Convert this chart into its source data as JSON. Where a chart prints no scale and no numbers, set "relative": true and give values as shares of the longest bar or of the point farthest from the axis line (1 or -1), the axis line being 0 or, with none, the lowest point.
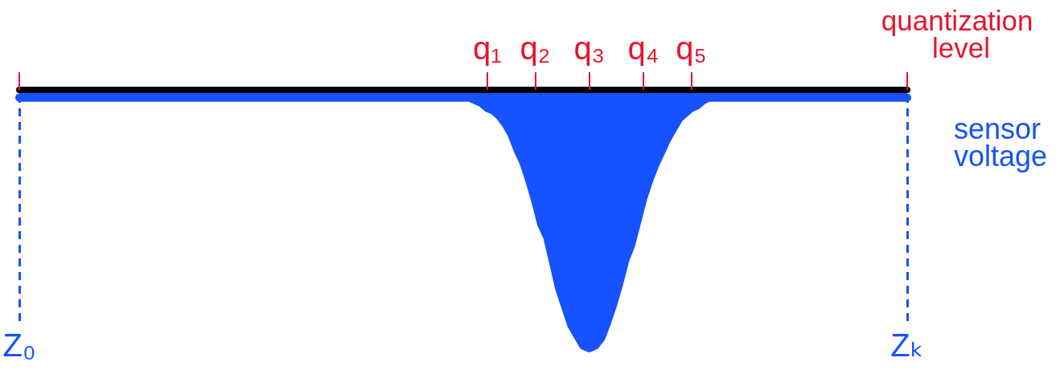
{
  "chart_data": {
    "type": "area",
    "relative": true,
    "xlabel": "quantization level",
    "categories": [
      "Z₀",
      null,
      null,
      null,
      null,
      null,
      null,
      null,
      null,
      null,
      null,
      null,
      null,
      null,
      null,
      null,
      null,
      null,
      null,
      null,
      null,
      null,
      null,
      null,
      null,
      null,
      null,
      null,
      null,
      null,
      null,
      null,
      null,
      null,
      null,
      null,
      null,
      null,
      null,
      null,
      null,
      null,
      null,
      null,
      null,
      null,
      null,
      null,
      null,
      null,
      null,
      null,
      null,
      null,
      null,
      null,
      null,
      null,
      null,
      null,
      null,
      null,
      null,
      null,
      null,
      null,
      null,
      null,
      null,
      null,
      null,
      null,
      null,
      null,
      null,
      null,
      null,
      null,
      "q₁",
      null,
      null,
      null,
      null,
      null,
      null,
      null,
      "q₂",
      null,
      null,
      null,
      null,
      null,
      null,
      null,
      null,
      "q₃",
      null,
      null,
      null,
      null,
      null,
      null,
      null,
      null,
      "q₄",
      null,
      null,
      null,
      null,
      null,
      null,
      null,
      "q₅",
      null,
      null,
      null,
      null,
      null,
      null,
      null,
      null,
      null,
      null,
      null,
      null,
      null,
      null,
      null,
      null,
      null,
      null,
      null,
      null,
      null,
      null,
      null,
      null,
      null,
      null,
      null,
      null,
      null,
      null,
      null,
      null,
      null,
      null,
      null,
      "Zₖ"
    ],
    "series": [
      {
        "name": "sensor voltage",
        "color": "#1652fe",
        "values": [
          -0.03,
          -0.03,
          -0.03,
          -0.03,
          -0.03,
          -0.03,
          -0.03,
          -0.03,
          -0.03,
          -0.03,
          -0.03,
          -0.03,
          -0.03,
          -0.03,
          -0.03,
          -0.03,
          -0.03,
          -0.03,
          -0.03,
          -0.03,
          -0.03,
          -0.03,
          -0.03,
          -0.03,
          -0.03,
          -0.03,
          -0.03,
          -0.03,
          -0.03,
          -0.03,
          -0.03,
          -0.03,
          -0.03,
          -0.03,
          -0.03,
          -0.03,
          -0.03,
          -0.03,
          -0.03,
          -0.03,
          -0.03,
          -0.03,
          -0.03,
          -0.03,
          -0.03,
          -0.03,
          -0.03,
          -0.03,
          -0.03,
          -0.03,
          -0.03,
          -0.03,
          -0.03,
          -0.03,
          -0.03,
          -0.03,
          -0.03,
          -0.03,
          -0.03,
          -0.03,
          -0.03,
          -0.03,
          -0.03,
          -0.03,
          -0.03,
          -0.03,
          -0.03,
          -0.03,
          -0.03,
          -0.03,
          -0.03,
          -0.03,
          -0.03,
          -0.03,
          -0.03,
          -0.03,
          -0.04,
          -0.05,
          -0.07,
          -0.08,
          -0.1,
          -0.13,
          -0.17,
          -0.23,
          -0.28,
          -0.35,
          -0.43,
          -0.52,
          -0.57,
          -0.67,
          -0.77,
          -0.84,
          -0.91,
          -0.95,
          -0.99,
          -1,
          -0.99,
          -0.96,
          -0.9,
          -0.83,
          -0.75,
          -0.66,
          -0.6,
          -0.51,
          -0.42,
          -0.35,
          -0.29,
          -0.24,
          -0.19,
          -0.15,
          -0.11,
          -0.09,
          -0.07,
          -0.06,
          -0.04,
          -0.03,
          -0.03,
          -0.03,
          -0.03,
          -0.03,
          -0.03,
          -0.03,
          -0.03,
          -0.03,
          -0.03,
          -0.03,
          -0.03,
          -0.03,
          -0.03,
          -0.03,
          -0.03,
          -0.03,
          -0.03,
          -0.03,
          -0.03,
          -0.03,
          -0.03,
          -0.03,
          -0.03,
          -0.03,
          -0.03,
          -0.03,
          -0.03,
          -0.03,
          -0.03,
          -0.03,
          -0.03,
          -0.03,
          -0.03
        ]
      }
    ]
  }
}
